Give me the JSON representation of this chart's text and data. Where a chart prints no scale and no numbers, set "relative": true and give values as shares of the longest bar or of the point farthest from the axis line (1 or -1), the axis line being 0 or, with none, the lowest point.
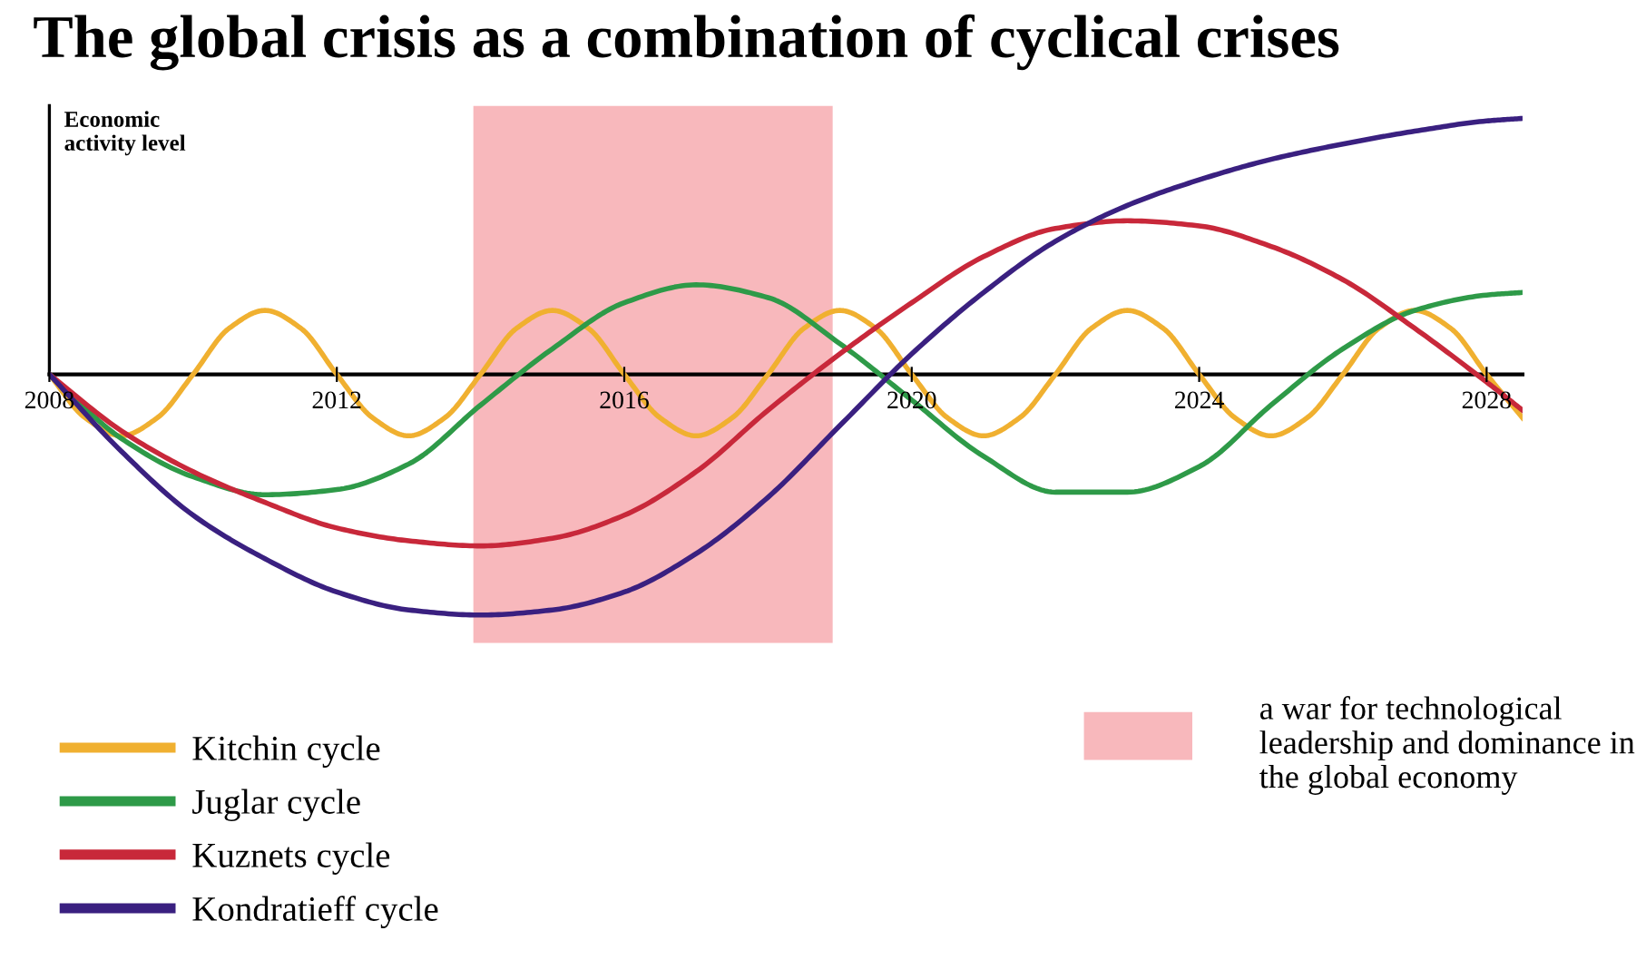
{
  "chart_data": {
    "type": "line",
    "title": "The global crisis as a combination of cyclical crises",
    "ylabel": "Economic\nactivity level",
    "relative": true,
    "xlim": [
      2008,
      2028.5
    ],
    "xticks": [
      2008,
      2012,
      2016,
      2020,
      2024,
      2028
    ],
    "tick_labels": "x",
    "grid": false,
    "legend": "bottom",
    "marker": "none",
    "line_style": "solid",
    "bands": [
      {
        "axis": "x",
        "from": 2013.9,
        "to": 2018.9,
        "label": "a war for technological leadership and dominance in the global economy",
        "color": "#f8b8bc"
      }
    ],
    "series": [
      {
        "name": "Kitchin cycle",
        "color": "#f0b030",
        "x": [
          2008,
          2008.5,
          2009,
          2009.5,
          2010,
          2010.5,
          2011,
          2011.5,
          2012,
          2012.5,
          2013,
          2013.5,
          2014,
          2014.5,
          2015,
          2015.5,
          2016,
          2016.5,
          2017,
          2017.5,
          2018,
          2018.5,
          2019,
          2019.5,
          2020,
          2020.5,
          2021,
          2021.5,
          2022,
          2022.5,
          2023,
          2023.5,
          2024,
          2024.5,
          2025,
          2025.5,
          2026,
          2026.5,
          2027,
          2027.5,
          2028,
          2028.5
        ],
        "values": [
          0,
          -0.17,
          -0.24,
          -0.17,
          0,
          0.18,
          0.25,
          0.18,
          0,
          -0.17,
          -0.24,
          -0.17,
          0,
          0.18,
          0.25,
          0.18,
          0,
          -0.17,
          -0.24,
          -0.17,
          0,
          0.18,
          0.25,
          0.18,
          0,
          -0.17,
          -0.24,
          -0.17,
          0,
          0.18,
          0.25,
          0.18,
          0,
          -0.17,
          -0.24,
          -0.17,
          0,
          0.18,
          0.25,
          0.18,
          0,
          -0.17
        ]
      },
      {
        "name": "Juglar cycle",
        "color": "#2e9a48",
        "x": [
          2008,
          2009,
          2010,
          2011,
          2012,
          2013,
          2014,
          2015,
          2016,
          2017,
          2018,
          2019,
          2020,
          2021,
          2022,
          2023,
          2024,
          2025,
          2026,
          2027,
          2028,
          2028.5
        ],
        "values": [
          0,
          -0.25,
          -0.4,
          -0.47,
          -0.45,
          -0.35,
          -0.12,
          0.1,
          0.28,
          0.35,
          0.3,
          0.12,
          -0.1,
          -0.32,
          -0.46,
          -0.46,
          -0.36,
          -0.12,
          0.1,
          0.25,
          0.31,
          0.32
        ]
      },
      {
        "name": "Kuznets cycle",
        "color": "#c8283a",
        "x": [
          2008,
          2009,
          2010,
          2011,
          2012,
          2013,
          2014,
          2015,
          2016,
          2017,
          2018,
          2019,
          2020,
          2021,
          2022,
          2023,
          2024,
          2025,
          2026,
          2027,
          2028,
          2028.5
        ],
        "values": [
          0,
          -0.22,
          -0.38,
          -0.5,
          -0.6,
          -0.65,
          -0.67,
          -0.64,
          -0.55,
          -0.38,
          -0.14,
          0.08,
          0.28,
          0.46,
          0.57,
          0.6,
          0.58,
          0.5,
          0.37,
          0.18,
          -0.03,
          -0.14
        ]
      },
      {
        "name": "Kondratieff cycle",
        "color": "#3a2080",
        "x": [
          2008,
          2009,
          2010,
          2011,
          2012,
          2013,
          2014,
          2015,
          2016,
          2017,
          2018,
          2019,
          2020,
          2021,
          2022,
          2023,
          2024,
          2025,
          2026,
          2027,
          2028,
          2028.5
        ],
        "values": [
          0,
          -0.3,
          -0.55,
          -0.72,
          -0.85,
          -0.92,
          -0.94,
          -0.92,
          -0.85,
          -0.7,
          -0.48,
          -0.2,
          0.08,
          0.32,
          0.52,
          0.66,
          0.76,
          0.84,
          0.9,
          0.95,
          0.99,
          1.0
        ]
      }
    ]
  }
}
